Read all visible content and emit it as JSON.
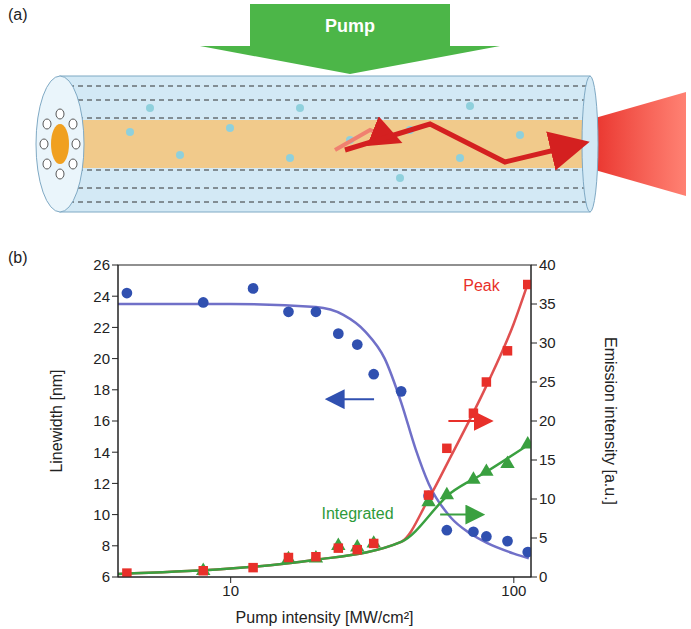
{
  "diagram": {
    "panel_label": "(a)",
    "arrow_label": "Pump"
  },
  "chart_data": {
    "panel_label": "(b)",
    "type": "scatter",
    "xlabel": "Pump intensity [MW/cm²]",
    "ylabel": "Linewidth [nm]",
    "y2label": "Emission intensity [a.u.]",
    "log": "x",
    "grid": false,
    "xlim": [
      4,
      115
    ],
    "xticks": [
      10,
      100
    ],
    "ylim": [
      6,
      26
    ],
    "yticks": [
      6,
      8,
      10,
      12,
      14,
      16,
      18,
      20,
      22,
      24,
      26
    ],
    "y2lim": [
      0,
      40
    ],
    "y2ticks": [
      0,
      5,
      10,
      15,
      20,
      25,
      30,
      35,
      40
    ],
    "annotations": [
      {
        "text": "Peak",
        "color": "#e8302a"
      },
      {
        "text": "Integrated",
        "color": "#2e9a3a"
      }
    ],
    "series": [
      {
        "type": "line",
        "color": "#7070c8",
        "x": [
          4,
          10,
          20,
          25,
          30,
          35,
          40,
          45,
          50,
          60,
          70,
          80,
          100,
          113
        ],
        "values": [
          23.5,
          23.5,
          23.3,
          22.8,
          21.7,
          20.0,
          17.2,
          14.2,
          12.0,
          9.8,
          8.8,
          8.2,
          7.5,
          7.2
        ]
      },
      {
        "type": "scatter",
        "color": "#3050b0",
        "marker": "circle",
        "x": [
          4.3,
          8,
          12,
          16,
          20,
          24,
          28,
          32,
          40,
          50,
          58,
          72,
          80,
          95,
          112
        ],
        "values": [
          24.2,
          23.6,
          24.5,
          23.0,
          23.0,
          21.6,
          20.9,
          19.0,
          17.9,
          11.2,
          9.0,
          8.9,
          8.6,
          8.3,
          7.6
        ]
      },
      {
        "type": "line",
        "color": "#e05050",
        "axis": "y2",
        "x": [
          4,
          20,
          40,
          50,
          60,
          80,
          100,
          113
        ],
        "values": [
          0.4,
          2.2,
          4.5,
          10.0,
          15.5,
          24.5,
          32.5,
          38.0
        ]
      },
      {
        "type": "line",
        "color": "#3aa040",
        "axis": "y2",
        "x": [
          4,
          20,
          40,
          60,
          80,
          113
        ],
        "values": [
          0.4,
          2.2,
          4.5,
          10.8,
          13.5,
          17.0
        ]
      },
      {
        "type": "scatter",
        "color": "#3aa040",
        "marker": "triangle",
        "axis": "y2",
        "x": [
          8,
          16,
          20,
          24,
          28,
          32,
          50,
          58,
          72,
          80,
          95,
          112
        ],
        "values": [
          0.8,
          2.3,
          2.4,
          4.0,
          3.8,
          4.3,
          9.6,
          10.5,
          12.5,
          13.5,
          14.5,
          17.0
        ]
      },
      {
        "type": "scatter",
        "color": "#e8302a",
        "marker": "square",
        "axis": "y2",
        "x": [
          4.3,
          8,
          12,
          16,
          20,
          24,
          28,
          32,
          50,
          58,
          72,
          80,
          95,
          112
        ],
        "values": [
          0.5,
          0.8,
          1.2,
          2.5,
          2.6,
          3.7,
          3.5,
          4.3,
          10.5,
          16.5,
          21.0,
          25.0,
          29.0,
          37.5
        ]
      }
    ]
  }
}
